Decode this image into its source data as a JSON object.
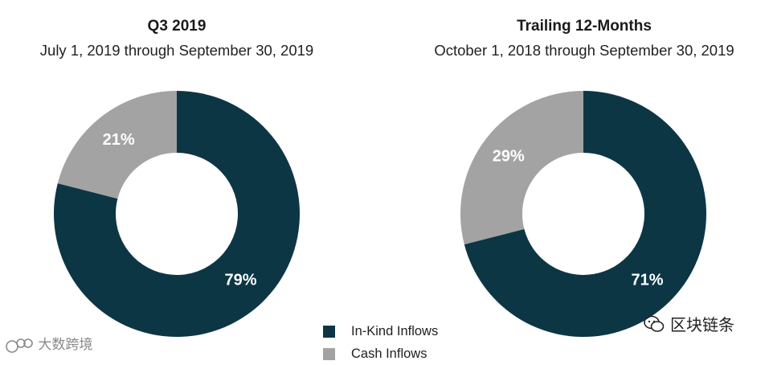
{
  "chart_data": [
    {
      "type": "donut",
      "title": "Q3 2019",
      "subtitle": "July 1, 2019 through September 30, 2019",
      "slices": [
        {
          "name": "In-Kind Inflows",
          "value": 79,
          "label": "79%",
          "color": "#0d3645"
        },
        {
          "name": "Cash Inflows",
          "value": 21,
          "label": "21%",
          "color": "#a3a3a3"
        }
      ]
    },
    {
      "type": "donut",
      "title": "Trailing 12-Months",
      "subtitle": "October 1, 2018 through September 30, 2019",
      "slices": [
        {
          "name": "In-Kind Inflows",
          "value": 71,
          "label": "71%",
          "color": "#0d3645"
        },
        {
          "name": "Cash Inflows",
          "value": 29,
          "label": "29%",
          "color": "#a3a3a3"
        }
      ]
    }
  ],
  "legend": [
    {
      "label": "In-Kind Inflows",
      "color": "#0d3645"
    },
    {
      "label": "Cash Inflows",
      "color": "#a3a3a3"
    }
  ],
  "watermarks": {
    "left": "大数跨境",
    "right": "区块链条"
  }
}
